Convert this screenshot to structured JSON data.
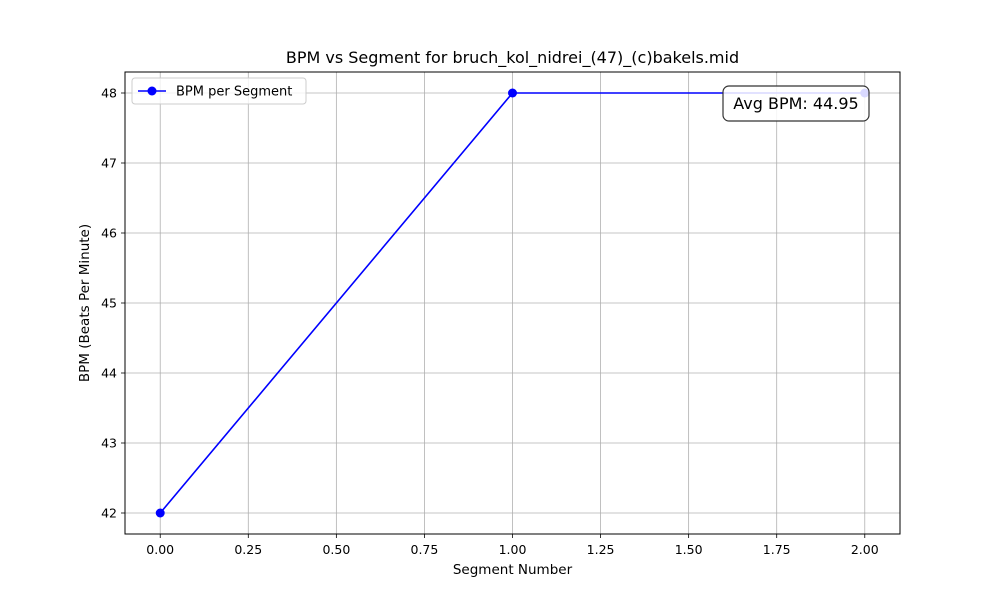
{
  "chart_data": {
    "type": "line",
    "title": "BPM vs Segment for bruch_kol_nidrei_(47)_(c)bakels.mid",
    "xlabel": "Segment Number",
    "ylabel": "BPM (Beats Per Minute)",
    "xlim": [
      -0.1,
      2.1
    ],
    "ylim": [
      41.7,
      48.3
    ],
    "x_ticks": [
      0.0,
      0.25,
      0.5,
      0.75,
      1.0,
      1.25,
      1.5,
      1.75,
      2.0
    ],
    "x_tick_labels": [
      "0.00",
      "0.25",
      "0.50",
      "0.75",
      "1.00",
      "1.25",
      "1.50",
      "1.75",
      "2.00"
    ],
    "y_ticks": [
      42,
      43,
      44,
      45,
      46,
      47,
      48
    ],
    "y_tick_labels": [
      "42",
      "43",
      "44",
      "45",
      "46",
      "47",
      "48"
    ],
    "grid": true,
    "legend_position": "top-left",
    "series": [
      {
        "name": "BPM per Segment",
        "color": "#0000ff",
        "marker": "circle",
        "x": [
          0,
          1,
          2
        ],
        "y": [
          42,
          48,
          48
        ]
      }
    ],
    "annotation": {
      "text": "Avg BPM: 44.95",
      "position": "top-right"
    }
  }
}
